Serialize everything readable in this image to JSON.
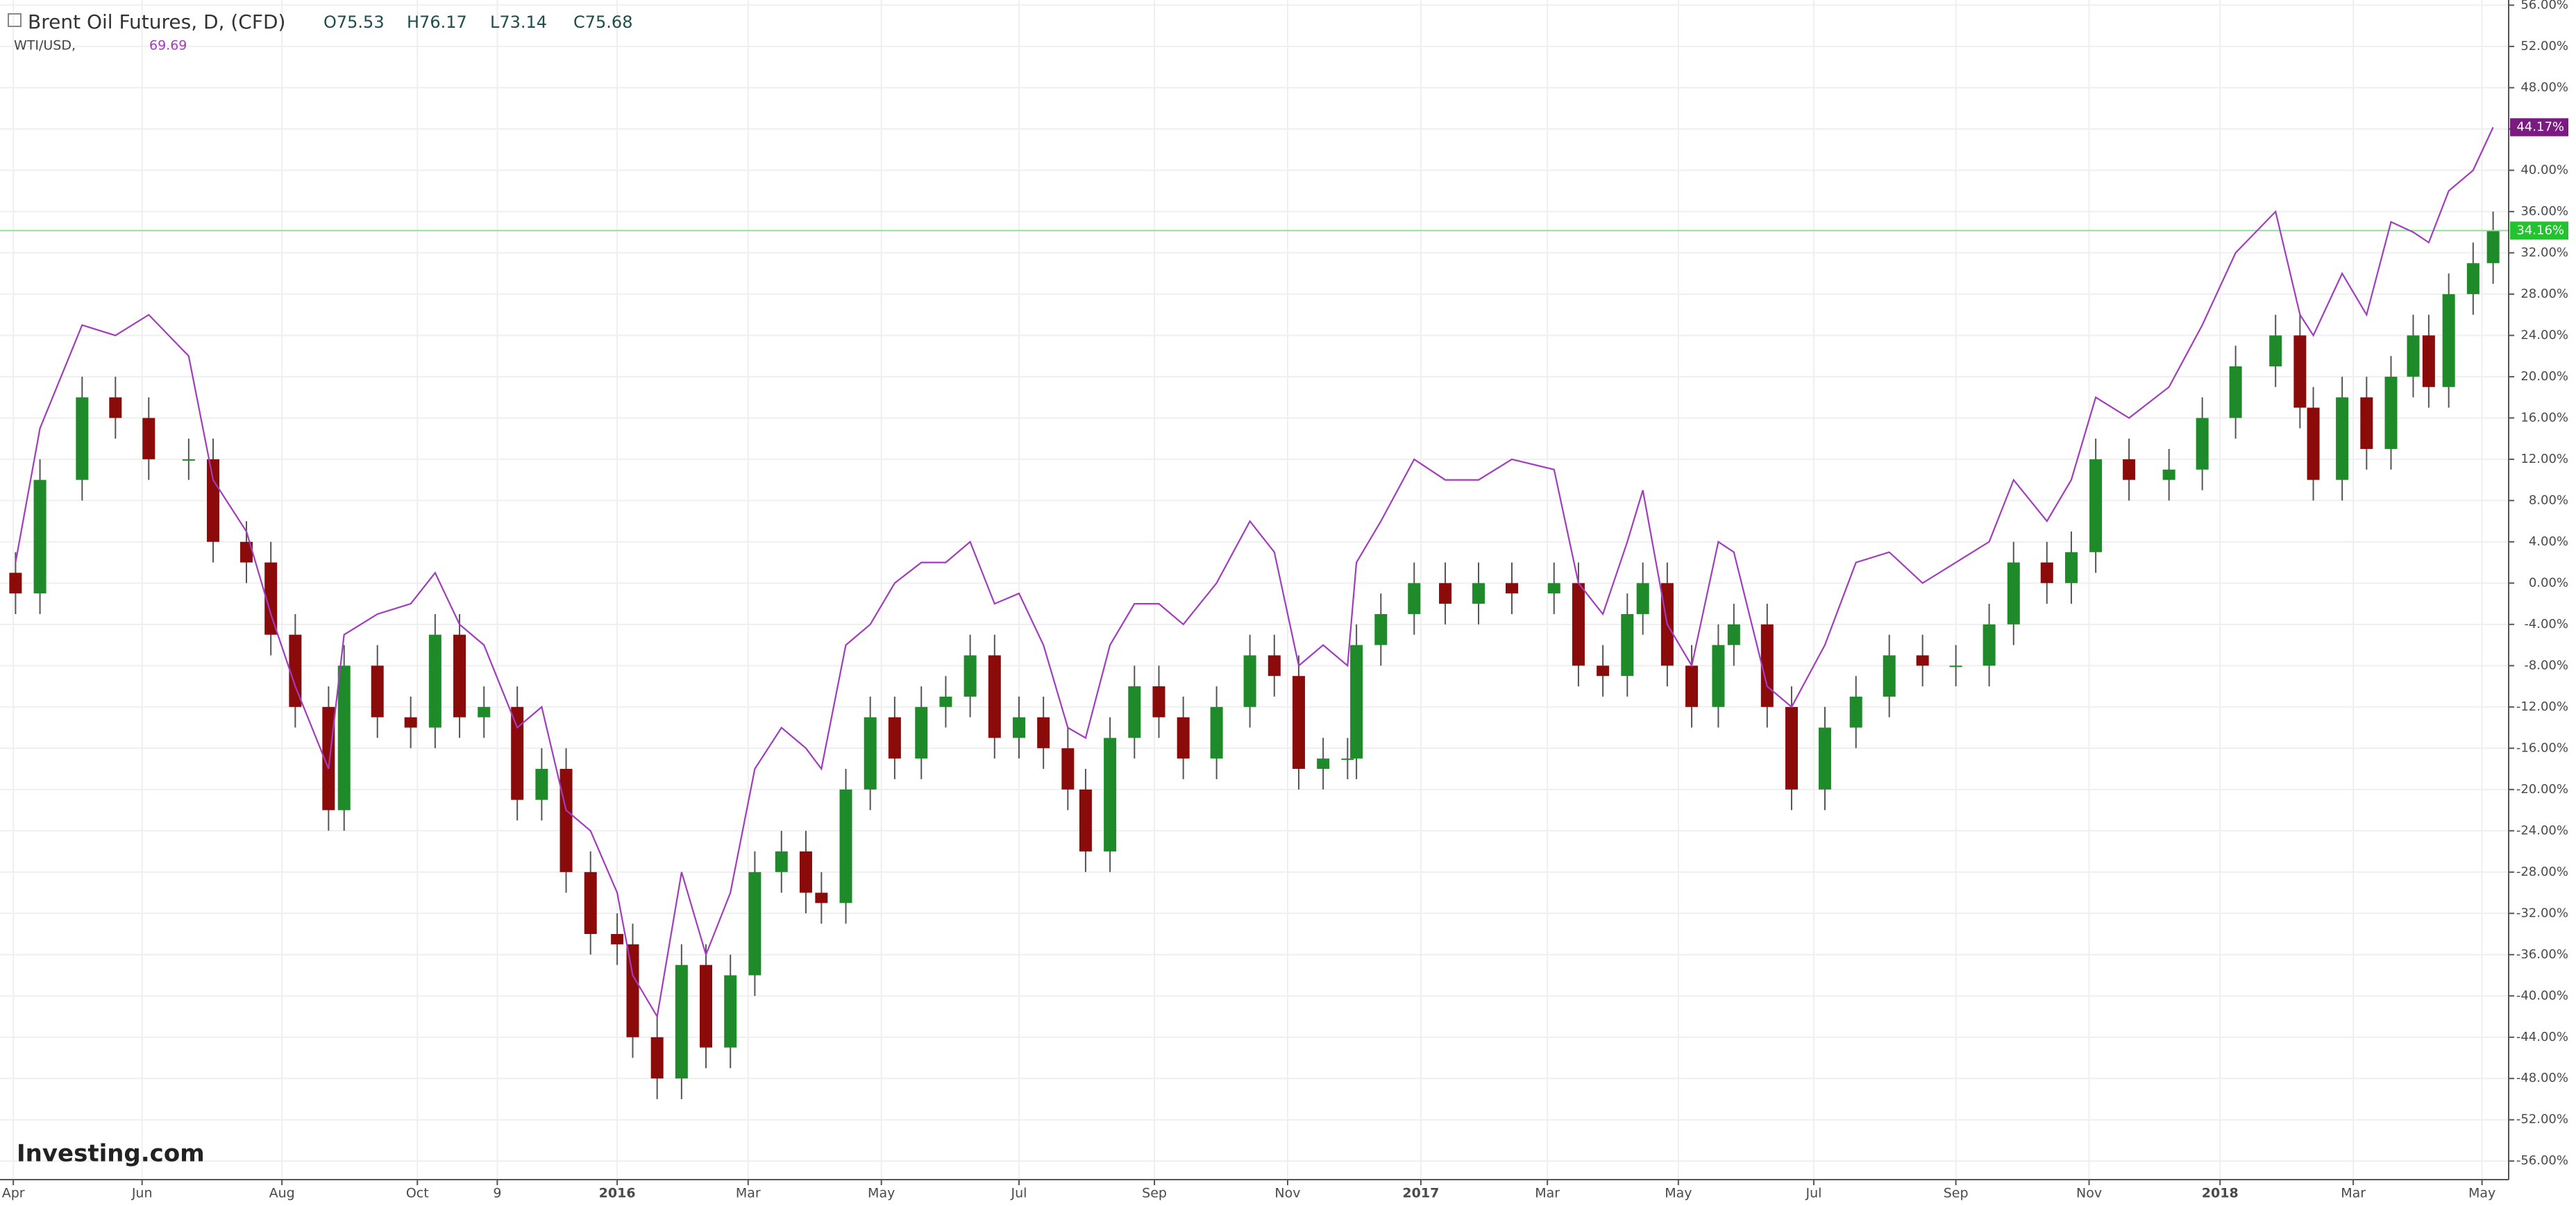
{
  "chart_data": {
    "type": "candlestick",
    "header": {
      "ohlc": [
        "O75.53",
        "H76.17",
        "L73.14",
        "C75.68"
      ]
    },
    "watermark": "Investing.com",
    "grid": true,
    "xlim": [
      0,
      1130
    ],
    "ylim": [
      -57.8,
      56.5
    ],
    "xticks": [
      {
        "value": 6,
        "label": "Apr"
      },
      {
        "value": 64,
        "label": "Jun"
      },
      {
        "value": 127,
        "label": "Aug"
      },
      {
        "value": 188,
        "label": "Oct"
      },
      {
        "value": 224,
        "label": "9"
      },
      {
        "value": 278,
        "label": "2016"
      },
      {
        "value": 337,
        "label": "Mar"
      },
      {
        "value": 397,
        "label": "May"
      },
      {
        "value": 459,
        "label": "Jul"
      },
      {
        "value": 520,
        "label": "Sep"
      },
      {
        "value": 580,
        "label": "Nov"
      },
      {
        "value": 640,
        "label": "2017"
      },
      {
        "value": 697,
        "label": "Mar"
      },
      {
        "value": 756,
        "label": "May"
      },
      {
        "value": 817,
        "label": "Jul"
      },
      {
        "value": 881,
        "label": "Sep"
      },
      {
        "value": 941,
        "label": "Nov"
      },
      {
        "value": 1000,
        "label": "2018"
      },
      {
        "value": 1060,
        "label": "Mar"
      },
      {
        "value": 1118,
        "label": "May"
      }
    ],
    "yticks": [
      {
        "value": 56,
        "label": "56.00%"
      },
      {
        "value": 52,
        "label": "52.00%"
      },
      {
        "value": 48,
        "label": "48.00%"
      },
      {
        "value": 44,
        "label": "44.00%"
      },
      {
        "value": 40,
        "label": "40.00%"
      },
      {
        "value": 36,
        "label": "36.00%"
      },
      {
        "value": 32,
        "label": "32.00%"
      },
      {
        "value": 28,
        "label": "28.00%"
      },
      {
        "value": 24,
        "label": "24.00%"
      },
      {
        "value": 20,
        "label": "20.00%"
      },
      {
        "value": 16,
        "label": "16.00%"
      },
      {
        "value": 12,
        "label": "12.00%"
      },
      {
        "value": 8,
        "label": "8.00%"
      },
      {
        "value": 4,
        "label": "4.00%"
      },
      {
        "value": 0,
        "label": "0.00%"
      },
      {
        "value": -4,
        "label": "-4.00%"
      },
      {
        "value": -8,
        "label": "-8.00%"
      },
      {
        "value": -12,
        "label": "-12.00%"
      },
      {
        "value": -16,
        "label": "-16.00%"
      },
      {
        "value": -20,
        "label": "-20.00%"
      },
      {
        "value": -24,
        "label": "-24.00%"
      },
      {
        "value": -28,
        "label": "-28.00%"
      },
      {
        "value": -32,
        "label": "-32.00%"
      },
      {
        "value": -36,
        "label": "-36.00%"
      },
      {
        "value": -40,
        "label": "-40.00%"
      },
      {
        "value": -44,
        "label": "-44.00%"
      },
      {
        "value": -48,
        "label": "-48.00%"
      },
      {
        "value": -52,
        "label": "-52.00%"
      },
      {
        "value": -56,
        "label": "-56.00%"
      }
    ],
    "x": [
      7,
      18,
      37,
      52,
      67,
      85,
      96,
      111,
      122,
      133,
      148,
      155,
      170,
      185,
      196,
      207,
      218,
      233,
      244,
      255,
      266,
      278,
      285,
      296,
      307,
      318,
      329,
      340,
      352,
      363,
      370,
      381,
      392,
      403,
      415,
      426,
      437,
      448,
      459,
      470,
      481,
      489,
      500,
      511,
      522,
      533,
      548,
      563,
      574,
      585,
      596,
      607,
      611,
      622,
      637,
      651,
      666,
      681,
      700,
      711,
      722,
      733,
      740,
      751,
      762,
      774,
      781,
      796,
      807,
      822,
      836,
      851,
      866,
      881,
      896,
      907,
      922,
      933,
      944,
      959,
      977,
      992,
      1007,
      1025,
      1036,
      1042,
      1055,
      1066,
      1077,
      1087,
      1094,
      1103,
      1114,
      1123
    ],
    "series": [
      {
        "name": "Brent Oil Futures, D, (CFD)",
        "type": "candlestick",
        "up_color": "#1e8a2a",
        "down_color": "#8b0a0a",
        "open": [
          1,
          -1,
          10,
          18,
          16,
          12,
          12,
          4,
          2,
          -5,
          -12,
          -22,
          -8,
          -13,
          -14,
          -5,
          -13,
          -12,
          -21,
          -18,
          -28,
          -34,
          -35,
          -44,
          -48,
          -37,
          -45,
          -38,
          -28,
          -26,
          -30,
          -31,
          -20,
          -13,
          -17,
          -12,
          -11,
          -7,
          -15,
          -13,
          -16,
          -20,
          -26,
          -15,
          -10,
          -13,
          -17,
          -12,
          -7,
          -9,
          -18,
          -17,
          -17,
          -6,
          -3,
          0,
          -2,
          0,
          -1,
          0,
          -8,
          -9,
          -3,
          0,
          -8,
          -12,
          -6,
          -4,
          -12,
          -20,
          -14,
          -11,
          -7,
          -8,
          -8,
          -4,
          2,
          0,
          3,
          12,
          10,
          11,
          16,
          21,
          24,
          17,
          10,
          18,
          13,
          20,
          24,
          19,
          28,
          31
        ],
        "high": [
          3,
          12,
          20,
          20,
          18,
          14,
          14,
          6,
          4,
          -3,
          -10,
          -6,
          -6,
          -11,
          -3,
          -3,
          -10,
          -10,
          -16,
          -16,
          -26,
          -32,
          -33,
          -42,
          -35,
          -35,
          -36,
          -26,
          -24,
          -24,
          -28,
          -18,
          -11,
          -11,
          -10,
          -9,
          -5,
          -5,
          -11,
          -11,
          -14,
          -18,
          -13,
          -8,
          -8,
          -11,
          -10,
          -5,
          -5,
          -7,
          -15,
          -15,
          -4,
          -1,
          2,
          2,
          2,
          2,
          2,
          2,
          -6,
          -1,
          2,
          2,
          -6,
          -4,
          -2,
          -2,
          -10,
          -12,
          -9,
          -5,
          -5,
          -6,
          -2,
          4,
          4,
          5,
          14,
          14,
          13,
          18,
          23,
          26,
          26,
          19,
          20,
          20,
          22,
          26,
          26,
          30,
          33,
          36
        ],
        "low": [
          -3,
          -3,
          8,
          14,
          10,
          10,
          2,
          0,
          -7,
          -14,
          -24,
          -24,
          -15,
          -16,
          -16,
          -15,
          -15,
          -23,
          -23,
          -30,
          -36,
          -37,
          -46,
          -50,
          -50,
          -47,
          -47,
          -40,
          -30,
          -32,
          -33,
          -33,
          -22,
          -19,
          -19,
          -14,
          -13,
          -17,
          -17,
          -18,
          -22,
          -28,
          -28,
          -17,
          -15,
          -19,
          -19,
          -14,
          -11,
          -20,
          -20,
          -19,
          -19,
          -8,
          -5,
          -4,
          -4,
          -3,
          -3,
          -10,
          -11,
          -11,
          -5,
          -10,
          -14,
          -14,
          -8,
          -14,
          -22,
          -22,
          -16,
          -13,
          -10,
          -10,
          -10,
          -6,
          -2,
          -2,
          1,
          8,
          8,
          9,
          14,
          19,
          15,
          8,
          8,
          11,
          11,
          18,
          17,
          17,
          26,
          29
        ],
        "close": [
          -1,
          10,
          18,
          16,
          12,
          12,
          4,
          2,
          -5,
          -12,
          -22,
          -8,
          -13,
          -14,
          -5,
          -13,
          -12,
          -21,
          -18,
          -28,
          -34,
          -35,
          -44,
          -48,
          -37,
          -45,
          -38,
          -28,
          -26,
          -30,
          -31,
          -20,
          -13,
          -17,
          -12,
          -11,
          -7,
          -15,
          -13,
          -16,
          -20,
          -26,
          -15,
          -10,
          -13,
          -17,
          -12,
          -7,
          -9,
          -18,
          -17,
          -17,
          -6,
          -3,
          0,
          -2,
          0,
          -1,
          0,
          -8,
          -9,
          -3,
          0,
          -8,
          -12,
          -6,
          -4,
          -12,
          -20,
          -14,
          -11,
          -7,
          -8,
          -8,
          -4,
          2,
          0,
          3,
          12,
          10,
          11,
          16,
          21,
          24,
          17,
          10,
          18,
          13,
          20,
          24,
          19,
          28,
          31,
          34.16
        ],
        "price_label": {
          "value": 34.16,
          "label": "34.16%"
        },
        "label_color": "#22c32e"
      },
      {
        "name": "WTI/USD,",
        "type": "line",
        "color": "#a23cbf",
        "last": "69.69",
        "values": [
          2,
          15,
          25,
          24,
          26,
          22,
          10,
          5,
          -3,
          -10,
          -18,
          -5,
          -3,
          -2,
          1,
          -4,
          -6,
          -14,
          -12,
          -22,
          -24,
          -30,
          -38,
          -42,
          -28,
          -36,
          -30,
          -18,
          -14,
          -16,
          -18,
          -6,
          -4,
          0,
          2,
          2,
          4,
          -2,
          -1,
          -6,
          -14,
          -15,
          -6,
          -2,
          -2,
          -4,
          0,
          6,
          3,
          -8,
          -6,
          -8,
          2,
          6,
          12,
          10,
          10,
          12,
          11,
          0,
          -3,
          4,
          9,
          -4,
          -8,
          4,
          3,
          -10,
          -12,
          -6,
          2,
          3,
          0,
          2,
          4,
          10,
          6,
          10,
          18,
          16,
          19,
          25,
          32,
          36,
          26,
          24,
          30,
          26,
          35,
          34,
          33,
          38,
          40,
          44.17
        ],
        "price_label": {
          "value": 44.17,
          "label": "44.17%"
        },
        "label_color": "#7b1a80"
      }
    ]
  }
}
